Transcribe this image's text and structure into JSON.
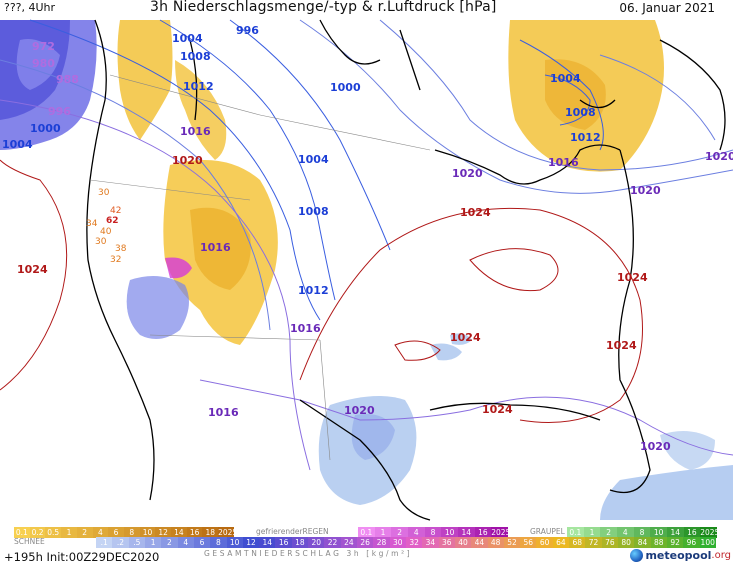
{
  "header": {
    "left_label": "???, 4Uhr",
    "title": "3h Niederschlagsmenge/-typ & r.Luftdruck [hPa]",
    "date": "06. Januar 2021"
  },
  "footer": {
    "run_label": "+195h Init:00Z29DEC2020",
    "brand_name": "meteopool",
    "brand_tld": ".org"
  },
  "legend": {
    "rain_ticks": [
      "0.1",
      "0.2",
      "0.5",
      "1",
      "2",
      "4",
      "6",
      "8",
      "10",
      "12",
      "14",
      "16",
      "18",
      "2025+"
    ],
    "freezing_label": "gefrierenderREGEN",
    "freezing_ticks": [
      "0.1",
      "1",
      "2",
      "4",
      "8",
      "10",
      "14",
      "16",
      "2025+"
    ],
    "graupel_label": "GRAUPEL",
    "graupel_ticks": [
      "0.1",
      "1",
      "2",
      "4",
      "8",
      "10",
      "14",
      "16",
      "2025+"
    ],
    "snow_label": "SCHNEE",
    "snow_ticks": [
      ".1",
      ".2",
      ".5",
      "1",
      "2",
      "4",
      "6",
      "8",
      "10",
      "12",
      "14",
      "16",
      "18",
      "20",
      "22",
      "24",
      "26",
      "28",
      "30",
      "32",
      "34",
      "36",
      "40",
      "44",
      "48",
      "52",
      "56",
      "60",
      "64",
      "68",
      "72",
      "76",
      "80",
      "84",
      "88",
      "92",
      "96",
      "100"
    ],
    "total_label": "GESAMTNIEDERSCHLAG 3h [kg/m²]",
    "colors": {
      "rain": "#f2b52a",
      "freezing": "#d63ad8",
      "graupel": "#3ab83a",
      "snow": "#5a6ee0"
    }
  },
  "map": {
    "isobar_labels": [
      {
        "text": "972",
        "color": "#b06ce0"
      },
      {
        "text": "980",
        "color": "#b06ce0"
      },
      {
        "text": "988",
        "color": "#b06ce0"
      },
      {
        "text": "996",
        "color": "#b06ce0"
      },
      {
        "text": "1004",
        "color": "#1c3fd6"
      },
      {
        "text": "1000",
        "color": "#1c3fd6"
      },
      {
        "text": "1004",
        "color": "#1c3fd6"
      },
      {
        "text": "1008",
        "color": "#1c3fd6"
      },
      {
        "text": "1012",
        "color": "#1c3fd6"
      },
      {
        "text": "996",
        "color": "#1c3fd6"
      },
      {
        "text": "1000",
        "color": "#1c3fd6"
      },
      {
        "text": "1004",
        "color": "#1c3fd6"
      },
      {
        "text": "1008",
        "color": "#1c3fd6"
      },
      {
        "text": "1012",
        "color": "#1c3fd6"
      },
      {
        "text": "1016",
        "color": "#6a2ab8"
      },
      {
        "text": "1020",
        "color": "#b01818"
      },
      {
        "text": "1016",
        "color": "#6a2ab8"
      },
      {
        "text": "1016",
        "color": "#6a2ab8"
      },
      {
        "text": "1016",
        "color": "#6a2ab8"
      },
      {
        "text": "1020",
        "color": "#6a2ab8"
      },
      {
        "text": "1020",
        "color": "#6a2ab8"
      },
      {
        "text": "1020",
        "color": "#6a2ab8"
      },
      {
        "text": "1020",
        "color": "#6a2ab8"
      },
      {
        "text": "1024",
        "color": "#b01818"
      },
      {
        "text": "1024",
        "color": "#b01818"
      },
      {
        "text": "1024",
        "color": "#b01818"
      },
      {
        "text": "1024",
        "color": "#b01818"
      },
      {
        "text": "1024",
        "color": "#b01818"
      },
      {
        "text": "1024",
        "color": "#b01818"
      },
      {
        "text": "1004",
        "color": "#1c3fd6"
      },
      {
        "text": "1008",
        "color": "#1c3fd6"
      },
      {
        "text": "1012",
        "color": "#1c3fd6"
      },
      {
        "text": "1016",
        "color": "#6a2ab8"
      },
      {
        "text": "1020",
        "color": "#6a2ab8"
      }
    ],
    "temp_labels": [
      "30",
      "42",
      "34",
      "62",
      "40",
      "30",
      "38",
      "32"
    ]
  }
}
